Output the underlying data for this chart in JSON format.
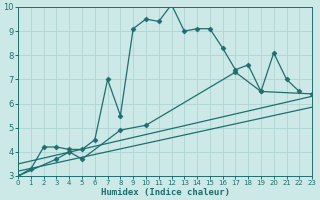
{
  "xlabel": "Humidex (Indice chaleur)",
  "xlim": [
    0,
    23
  ],
  "ylim": [
    3,
    10
  ],
  "xticks": [
    0,
    1,
    2,
    3,
    4,
    5,
    6,
    7,
    8,
    9,
    10,
    11,
    12,
    13,
    14,
    15,
    16,
    17,
    18,
    19,
    20,
    21,
    22,
    23
  ],
  "yticks": [
    3,
    4,
    5,
    6,
    7,
    8,
    9,
    10
  ],
  "bg_color": "#cce9e7",
  "grid_color": "#aed4d1",
  "line_color": "#1e6e6e",
  "series": [
    {
      "x": [
        0,
        1,
        2,
        3,
        4,
        5,
        6,
        7,
        8,
        9,
        10,
        11,
        12,
        13,
        14,
        15,
        16,
        17,
        18,
        19,
        20,
        21,
        22
      ],
      "y": [
        3.0,
        3.3,
        4.2,
        4.2,
        4.1,
        4.1,
        4.5,
        7.0,
        5.5,
        9.1,
        9.5,
        9.4,
        10.1,
        9.0,
        9.1,
        9.1,
        8.3,
        7.4,
        7.6,
        6.5,
        8.1,
        7.0,
        6.5
      ],
      "marker": "D",
      "markersize": 2.5,
      "linestyle": "-"
    },
    {
      "x": [
        0,
        3,
        4,
        5,
        8,
        10,
        17,
        19,
        23
      ],
      "y": [
        3.0,
        3.7,
        4.0,
        3.7,
        4.9,
        5.1,
        7.3,
        6.5,
        6.4
      ],
      "marker": "D",
      "markersize": 2.5,
      "linestyle": "-"
    },
    {
      "x": [
        0,
        23
      ],
      "y": [
        3.5,
        6.3
      ],
      "marker": null,
      "markersize": 0,
      "linestyle": "-"
    },
    {
      "x": [
        0,
        23
      ],
      "y": [
        3.2,
        5.85
      ],
      "marker": null,
      "markersize": 0,
      "linestyle": "-"
    }
  ]
}
